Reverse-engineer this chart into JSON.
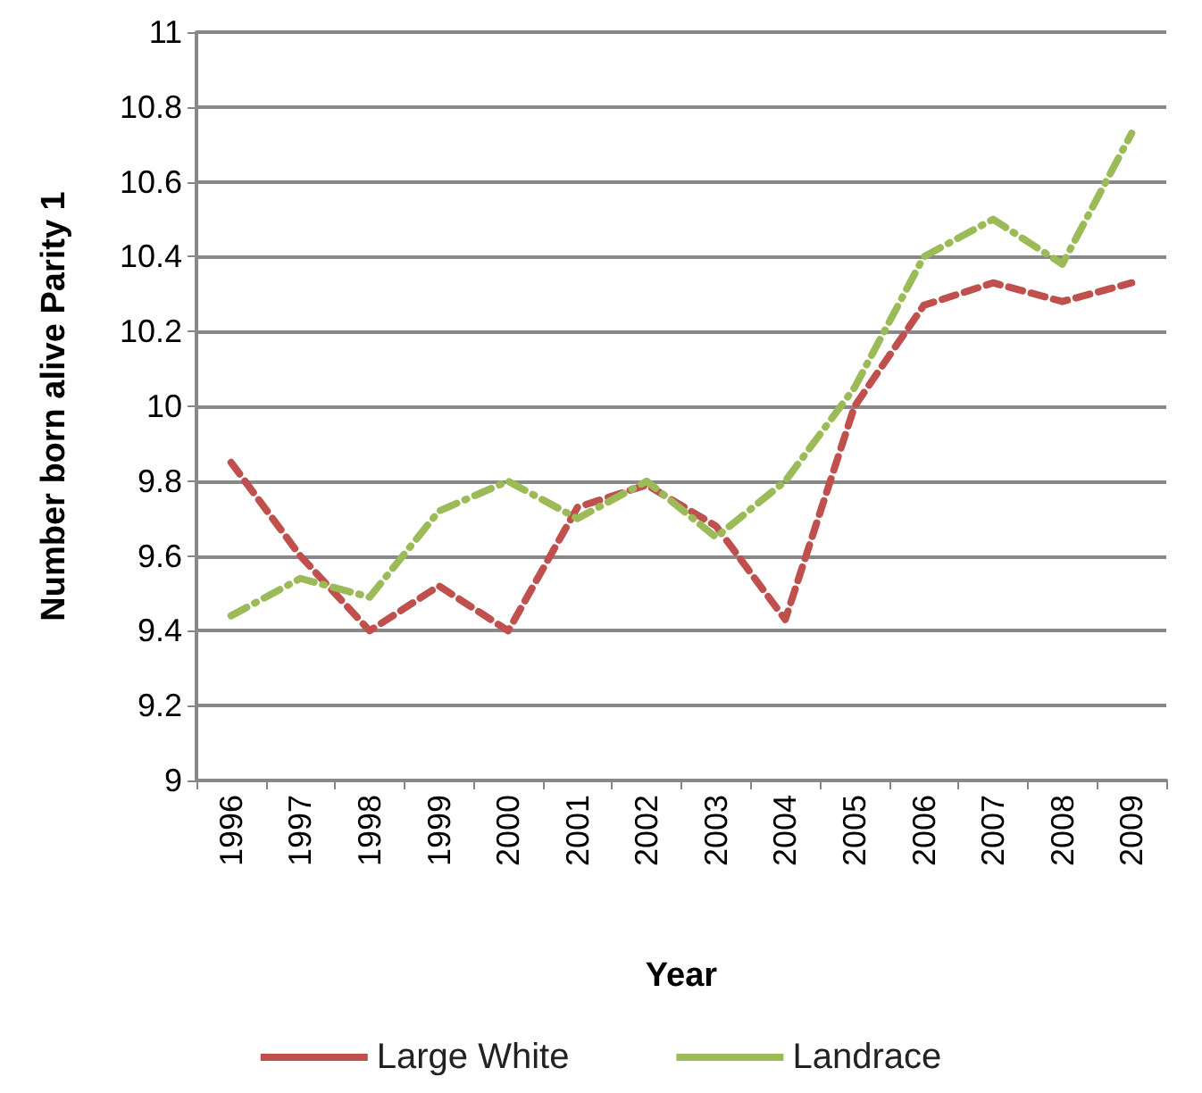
{
  "chart_data": {
    "type": "line",
    "xlabel": "Year",
    "ylabel": "Number born alive Parity 1",
    "categories": [
      "1996",
      "1997",
      "1998",
      "1999",
      "2000",
      "2001",
      "2002",
      "2003",
      "2004",
      "2005",
      "2006",
      "2007",
      "2008",
      "2009"
    ],
    "series": [
      {
        "name": "Large White",
        "color": "#c0504d",
        "line_style": "dashed",
        "values": [
          9.85,
          9.6,
          9.4,
          9.52,
          9.4,
          9.73,
          9.79,
          9.68,
          9.43,
          10.0,
          10.27,
          10.33,
          10.28,
          10.33
        ]
      },
      {
        "name": "Landrace",
        "color": "#9bbb59",
        "line_style": "dashdot",
        "values": [
          9.44,
          9.54,
          9.49,
          9.72,
          9.8,
          9.7,
          9.8,
          9.65,
          9.8,
          10.05,
          10.4,
          10.5,
          10.38,
          10.73
        ]
      }
    ],
    "ylim": [
      9,
      11
    ],
    "yticks": [
      9,
      9.2,
      9.4,
      9.6,
      9.8,
      10,
      10.2,
      10.4,
      10.6,
      10.8,
      11
    ],
    "grid": "y",
    "legend": "bottom",
    "marker": "none"
  }
}
